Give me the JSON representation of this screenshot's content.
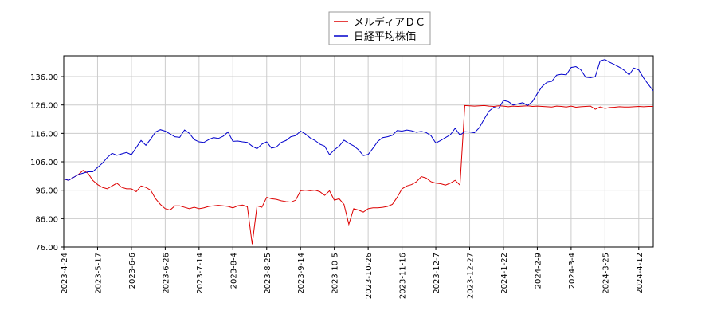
{
  "chart_data": {
    "type": "line",
    "categories": [
      "2023-4-24",
      null,
      null,
      null,
      null,
      null,
      null,
      "2023-5-17",
      null,
      null,
      null,
      null,
      null,
      null,
      "2023-6-6",
      null,
      null,
      null,
      null,
      null,
      null,
      "2023-6-26",
      null,
      null,
      null,
      null,
      null,
      null,
      "2023-7-14",
      null,
      null,
      null,
      null,
      null,
      null,
      "2023-8-4",
      null,
      null,
      null,
      null,
      null,
      null,
      "2023-8-25",
      null,
      null,
      null,
      null,
      null,
      null,
      "2023-9-14",
      null,
      null,
      null,
      null,
      null,
      null,
      "2023-10-5",
      null,
      null,
      null,
      null,
      null,
      null,
      "2023-10-26",
      null,
      null,
      null,
      null,
      null,
      null,
      "2023-11-16",
      null,
      null,
      null,
      null,
      null,
      null,
      "2023-12-7",
      null,
      null,
      null,
      null,
      null,
      null,
      "2023-12-27",
      null,
      null,
      null,
      null,
      null,
      null,
      "2024-1-22",
      null,
      null,
      null,
      null,
      null,
      null,
      "2024-2-9",
      null,
      null,
      null,
      null,
      null,
      null,
      "2024-3-4",
      null,
      null,
      null,
      null,
      null,
      null,
      "2024-3-25",
      null,
      null,
      null,
      null,
      null,
      null,
      "2024-4-12",
      null,
      null,
      null
    ],
    "series": [
      {
        "name": "メルディアＤＣ",
        "color": "#dd0000",
        "values": [
          100,
          99.5,
          100.5,
          101.5,
          103,
          102,
          99.5,
          98,
          97,
          96.5,
          97.5,
          98.5,
          97,
          96.5,
          96.5,
          95.5,
          97.5,
          97,
          96,
          93,
          91,
          89.5,
          89,
          90.5,
          90.5,
          90,
          89.5,
          90,
          89.5,
          89.8,
          90.3,
          90.5,
          90.7,
          90.5,
          90.3,
          89.8,
          90.5,
          90.8,
          90.2,
          77,
          90.5,
          90,
          93.5,
          93,
          92.8,
          92.3,
          92,
          91.8,
          92.5,
          95.8,
          96,
          95.8,
          96,
          95.5,
          94.2,
          95.8,
          92.5,
          93,
          91,
          84,
          89.5,
          89,
          88.3,
          89.5,
          89.8,
          89.8,
          90,
          90.3,
          91,
          93.5,
          96.5,
          97.5,
          98,
          99,
          100.8,
          100.3,
          99,
          98.5,
          98.3,
          97.8,
          98.5,
          99.5,
          97.8,
          125.8,
          125.7,
          125.6,
          125.7,
          125.8,
          125.6,
          125.5,
          125.7,
          125.6,
          125.4,
          125.6,
          125.5,
          125.6,
          125.7,
          125.5,
          125.6,
          125.5,
          125.4,
          125.3,
          125.6,
          125.5,
          125.3,
          125.6,
          125.2,
          125.4,
          125.5,
          125.6,
          124.5,
          125.3,
          124.8,
          125.1,
          125.2,
          125.4,
          125.3,
          125.3,
          125.4,
          125.5,
          125.4,
          125.5,
          125.5
        ]
      },
      {
        "name": "日経平均株価",
        "color": "#0000cc",
        "values": [
          100,
          99.5,
          100.5,
          101.5,
          102,
          102.5,
          102.5,
          104,
          105.5,
          107.5,
          109,
          108.3,
          108.8,
          109.3,
          108.5,
          111,
          113.5,
          111.8,
          114,
          116.5,
          117.3,
          116.8,
          115.8,
          114.8,
          114.6,
          117.2,
          116,
          113.8,
          113,
          112.8,
          113.8,
          114.5,
          114.2,
          115,
          116.5,
          113.2,
          113.3,
          113,
          112.8,
          111.5,
          110.6,
          112.2,
          113,
          110.8,
          111.2,
          112.8,
          113.5,
          114.8,
          115.2,
          116.8,
          115.8,
          114.4,
          113.5,
          112.2,
          111.5,
          108.5,
          110.2,
          111.5,
          113.6,
          112.5,
          111.6,
          110.2,
          108.2,
          108.6,
          110.8,
          113.2,
          114.5,
          114.8,
          115.3,
          117,
          116.8,
          117.2,
          116.9,
          116.4,
          116.7,
          116.3,
          115.2,
          112.6,
          113.5,
          114.5,
          115.5,
          117.8,
          115.4,
          116.6,
          116.5,
          116.2,
          118,
          121,
          123.8,
          125.2,
          124.8,
          127.6,
          127.2,
          126,
          126.4,
          126.8,
          125.8,
          127.2,
          130,
          132.5,
          134,
          134.3,
          136.5,
          136.8,
          136.6,
          139.2,
          139.5,
          138.4,
          135.8,
          135.6,
          136,
          141.5,
          142,
          141,
          140.2,
          139.3,
          138.2,
          136.6,
          139,
          138.3,
          135.5,
          133.2,
          131
        ]
      }
    ],
    "ylim": [
      76,
      143.3
    ],
    "yticks": [
      {
        "value": 76,
        "label": "76.00"
      },
      {
        "value": 86,
        "label": "86.00"
      },
      {
        "value": 96,
        "label": "96.00"
      },
      {
        "value": 106,
        "label": "106.00"
      },
      {
        "value": 116,
        "label": "116.00"
      },
      {
        "value": 126,
        "label": "126.00"
      },
      {
        "value": 136,
        "label": "136.00"
      }
    ],
    "grid": true
  }
}
